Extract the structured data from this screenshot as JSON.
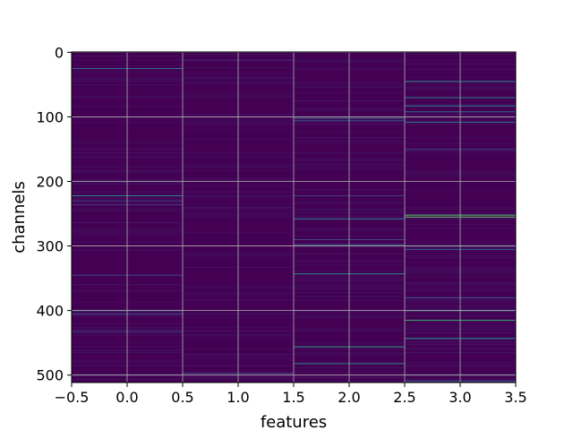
{
  "chart_data": {
    "type": "heatmap",
    "title": "",
    "xlabel": "features",
    "ylabel": "channels",
    "x_ticks": [
      -0.5,
      0.0,
      0.5,
      1.0,
      1.5,
      2.0,
      2.5,
      3.0,
      3.5
    ],
    "x_tick_labels": [
      "−0.5",
      "0.0",
      "0.5",
      "1.0",
      "1.5",
      "2.0",
      "2.5",
      "3.0",
      "3.5"
    ],
    "y_ticks": [
      0,
      100,
      200,
      300,
      400,
      500
    ],
    "y_tick_labels": [
      "0",
      "100",
      "200",
      "300",
      "400",
      "500"
    ],
    "xlim": [
      -0.5,
      3.5
    ],
    "ylim": [
      511.5,
      -0.5
    ],
    "y_inverted": true,
    "grid": true,
    "colormap": "viridis",
    "features": [
      0,
      1,
      2,
      3
    ],
    "n_channels": 512,
    "background_color": "#440154",
    "highlights": [
      {
        "feature": 0,
        "channel": 25,
        "value": 0.35
      },
      {
        "feature": 0,
        "channel": 222,
        "value": 0.45
      },
      {
        "feature": 0,
        "channel": 230,
        "value": 0.2
      },
      {
        "feature": 0,
        "channel": 236,
        "value": 0.18
      },
      {
        "feature": 0,
        "channel": 345,
        "value": 0.22
      },
      {
        "feature": 0,
        "channel": 400,
        "value": 0.3
      },
      {
        "feature": 0,
        "channel": 405,
        "value": 0.25
      },
      {
        "feature": 0,
        "channel": 432,
        "value": 0.2
      },
      {
        "feature": 1,
        "channel": 12,
        "value": 0.15
      },
      {
        "feature": 1,
        "channel": 100,
        "value": 0.2
      },
      {
        "feature": 1,
        "channel": 497,
        "value": 0.25
      },
      {
        "feature": 2,
        "channel": 102,
        "value": 0.35
      },
      {
        "feature": 2,
        "channel": 106,
        "value": 0.25
      },
      {
        "feature": 2,
        "channel": 222,
        "value": 0.2
      },
      {
        "feature": 2,
        "channel": 258,
        "value": 0.4
      },
      {
        "feature": 2,
        "channel": 290,
        "value": 0.22
      },
      {
        "feature": 2,
        "channel": 298,
        "value": 0.28
      },
      {
        "feature": 2,
        "channel": 343,
        "value": 0.5
      },
      {
        "feature": 2,
        "channel": 456,
        "value": 0.55
      },
      {
        "feature": 2,
        "channel": 482,
        "value": 0.45
      },
      {
        "feature": 3,
        "channel": 45,
        "value": 0.45
      },
      {
        "feature": 3,
        "channel": 70,
        "value": 0.4
      },
      {
        "feature": 3,
        "channel": 83,
        "value": 0.45
      },
      {
        "feature": 3,
        "channel": 92,
        "value": 0.35
      },
      {
        "feature": 3,
        "channel": 108,
        "value": 0.4
      },
      {
        "feature": 3,
        "channel": 150,
        "value": 0.2
      },
      {
        "feature": 3,
        "channel": 252,
        "value": 0.7
      },
      {
        "feature": 3,
        "channel": 255,
        "value": 0.75
      },
      {
        "feature": 3,
        "channel": 300,
        "value": 0.4
      },
      {
        "feature": 3,
        "channel": 305,
        "value": 0.3
      },
      {
        "feature": 3,
        "channel": 380,
        "value": 0.25
      },
      {
        "feature": 3,
        "channel": 400,
        "value": 0.45
      },
      {
        "feature": 3,
        "channel": 415,
        "value": 0.6
      },
      {
        "feature": 3,
        "channel": 443,
        "value": 0.5
      },
      {
        "feature": 3,
        "channel": 509,
        "value": 0.3
      }
    ]
  }
}
